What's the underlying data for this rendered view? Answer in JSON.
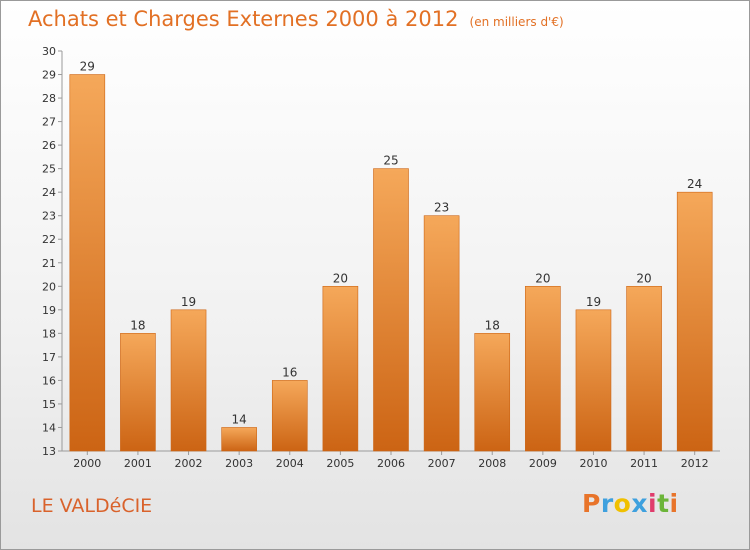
{
  "title": "Achats et Charges Externes 2000 à 2012",
  "unit_note": "(en milliers d'€)",
  "place_name": "LE VALDéCIE",
  "logo": {
    "text": "Proxiti",
    "letters": [
      "P",
      "r",
      "o",
      "x",
      "i",
      "t",
      "i"
    ],
    "colors": [
      "#e8742a",
      "#3ea0de",
      "#f0c000",
      "#3ea0de",
      "#e03c6c",
      "#6cb53a",
      "#e8742a"
    ]
  },
  "colors": {
    "bar": "#f08a30",
    "bar_light": "#f5a85a",
    "bar_dark": "#cc6414",
    "title": "#e27024"
  },
  "chart_data": {
    "type": "bar",
    "categories": [
      "2000",
      "2001",
      "2002",
      "2003",
      "2004",
      "2005",
      "2006",
      "2007",
      "2008",
      "2009",
      "2010",
      "2011",
      "2012"
    ],
    "values": [
      29,
      18,
      19,
      14,
      16,
      20,
      25,
      23,
      18,
      20,
      19,
      20,
      24
    ],
    "data_labels": [
      "29",
      "18",
      "19",
      "14",
      "16",
      "20",
      "25",
      "23",
      "18",
      "20",
      "19",
      "20",
      "24"
    ],
    "ylim": [
      13,
      30
    ],
    "yticks": [
      13,
      14,
      15,
      16,
      17,
      18,
      19,
      20,
      21,
      22,
      23,
      24,
      25,
      26,
      27,
      28,
      29,
      30
    ],
    "grid": false,
    "legend": "none"
  }
}
